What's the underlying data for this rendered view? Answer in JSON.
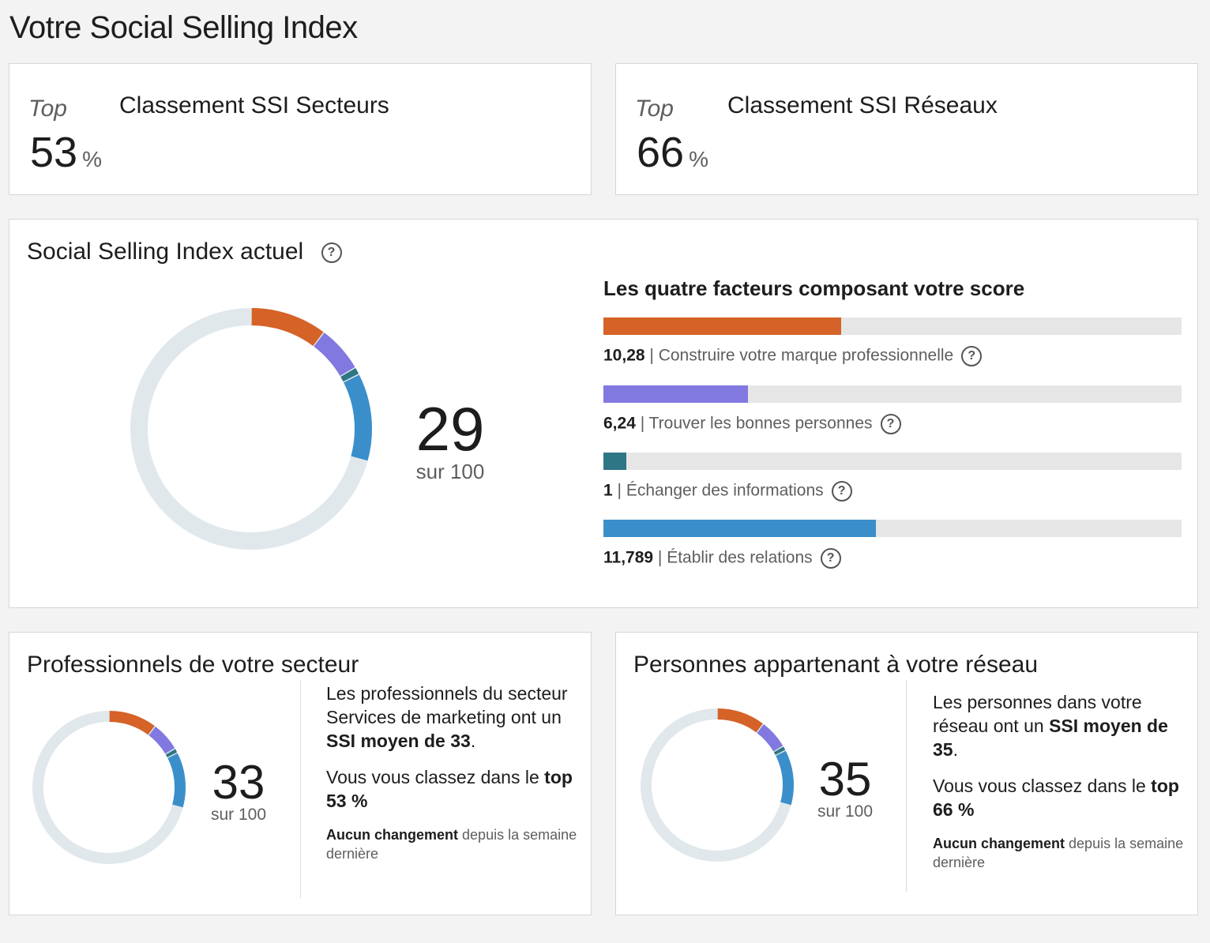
{
  "page": {
    "title": "Votre Social Selling Index"
  },
  "rankings": [
    {
      "top_label": "Top",
      "value": "53",
      "unit": "%",
      "label": "Classement SSI Secteurs"
    },
    {
      "top_label": "Top",
      "value": "66",
      "unit": "%",
      "label": "Classement SSI Réseaux"
    }
  ],
  "current_ssi": {
    "title": "Social Selling Index actuel",
    "help_icon": "question-circle-icon",
    "score": "29",
    "score_suffix": "sur 100",
    "factors_title": "Les quatre facteurs composant votre score",
    "max_per_factor": 25,
    "factors": [
      {
        "value": "10,28",
        "label": "Construire votre marque professionnelle",
        "numeric": 10.28,
        "color": "#d56227"
      },
      {
        "value": "6,24",
        "label": "Trouver les bonnes personnes",
        "numeric": 6.24,
        "color": "#8179e0"
      },
      {
        "value": "1",
        "label": "Échanger des informations",
        "numeric": 1,
        "color": "#2e7685"
      },
      {
        "value": "11,789",
        "label": "Établir des relations",
        "numeric": 11.789,
        "color": "#3a8fcb"
      }
    ]
  },
  "sector": {
    "title": "Professionnels de votre secteur",
    "score": "33",
    "score_suffix": "sur 100",
    "desc_pre": "Les professionnels du secteur Services de marketing ont un ",
    "desc_bold": "SSI moyen de 33",
    "desc_post": ".",
    "rank_pre": "Vous vous classez dans le ",
    "rank_bold": "top 53 %",
    "change_bold": "Aucun changement",
    "change_rest": " depuis la semaine dernière",
    "segments": [
      10.28,
      6.24,
      1,
      11.789
    ]
  },
  "network": {
    "title": "Personnes appartenant à votre réseau",
    "score": "35",
    "score_suffix": "sur 100",
    "desc_pre": "Les personnes dans votre réseau ont un ",
    "desc_bold": "SSI moyen de 35",
    "desc_post": ".",
    "rank_pre": "Vous vous classez dans le ",
    "rank_bold": "top 66 %",
    "change_bold": "Aucun changement",
    "change_rest": " depuis la semaine dernière",
    "segments": [
      10.28,
      6.24,
      1,
      11.789
    ]
  },
  "colors": {
    "track": "#e1e8ec",
    "orange": "#d56227",
    "purple": "#8179e0",
    "teal": "#2e7685",
    "blue": "#3a8fcb"
  }
}
